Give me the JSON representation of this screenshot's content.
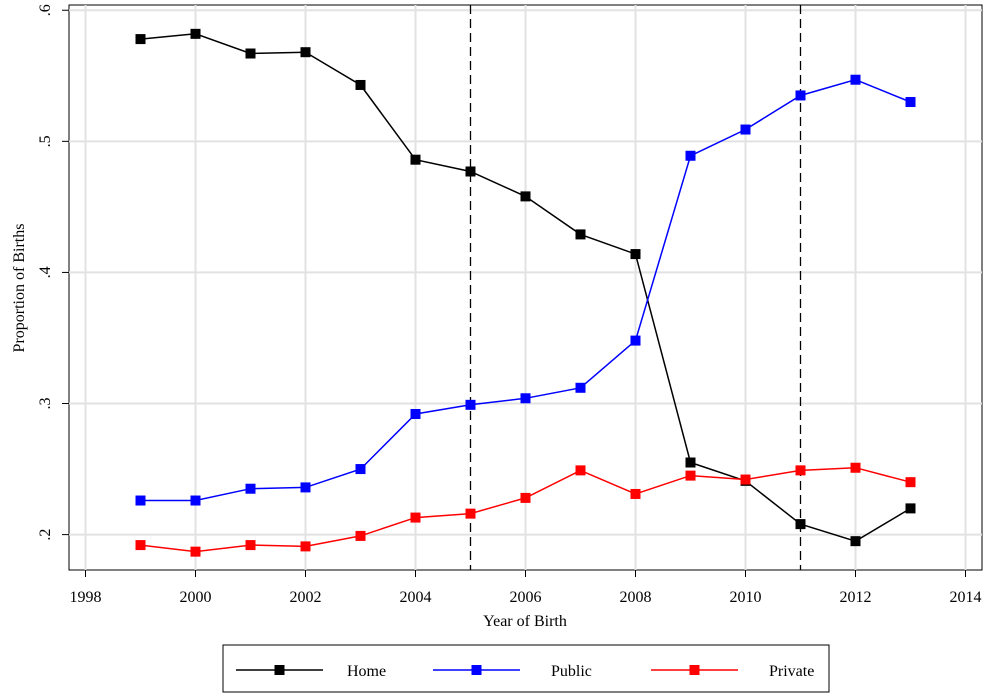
{
  "chart_data": {
    "type": "line",
    "title": "",
    "xlabel": "Year of Birth",
    "ylabel": "Proportion of Births",
    "xlim": [
      1997.7,
      2014.3
    ],
    "ylim": [
      0.173,
      0.604
    ],
    "xticks": [
      1998,
      2000,
      2002,
      2004,
      2006,
      2008,
      2010,
      2012,
      2014
    ],
    "xtick_labels": [
      "1998",
      "2000",
      "2002",
      "2004",
      "2006",
      "2008",
      "2010",
      "2012",
      "2014"
    ],
    "yticks": [
      0.2,
      0.3,
      0.4,
      0.5,
      0.6
    ],
    "ytick_labels": [
      ".2",
      ".3",
      ".4",
      ".5",
      ".6"
    ],
    "grid": true,
    "reference_lines_x": [
      2005,
      2011
    ],
    "legend_position": "bottom",
    "x": [
      1999,
      2000,
      2001,
      2002,
      2003,
      2004,
      2005,
      2006,
      2007,
      2008,
      2009,
      2010,
      2011,
      2012,
      2013
    ],
    "series": [
      {
        "name": "Home",
        "color": "#000000",
        "values": [
          0.578,
          0.582,
          0.567,
          0.568,
          0.543,
          0.486,
          0.477,
          0.458,
          0.429,
          0.414,
          0.255,
          0.241,
          0.208,
          0.195,
          0.22
        ]
      },
      {
        "name": "Public",
        "color": "#0000ff",
        "values": [
          0.226,
          0.226,
          0.235,
          0.236,
          0.25,
          0.292,
          0.299,
          0.304,
          0.312,
          0.348,
          0.489,
          0.509,
          0.535,
          0.547,
          0.53
        ]
      },
      {
        "name": "Private",
        "color": "#ff0000",
        "values": [
          0.192,
          0.187,
          0.192,
          0.191,
          0.199,
          0.213,
          0.216,
          0.228,
          0.249,
          0.231,
          0.245,
          0.242,
          0.249,
          0.251,
          0.24
        ]
      }
    ]
  }
}
